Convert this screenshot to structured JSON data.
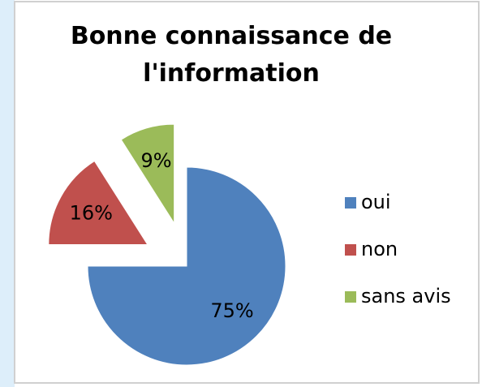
{
  "chart_data": {
    "type": "pie",
    "title": "Bonne connaissance de l'information",
    "categories": [
      "oui",
      "non",
      "sans avis"
    ],
    "values": [
      75,
      16,
      9
    ],
    "value_labels": [
      "75%",
      "16%",
      "9%"
    ],
    "colors": [
      "#4f81bd",
      "#c0504d",
      "#9bbb59"
    ],
    "legend": "right"
  }
}
